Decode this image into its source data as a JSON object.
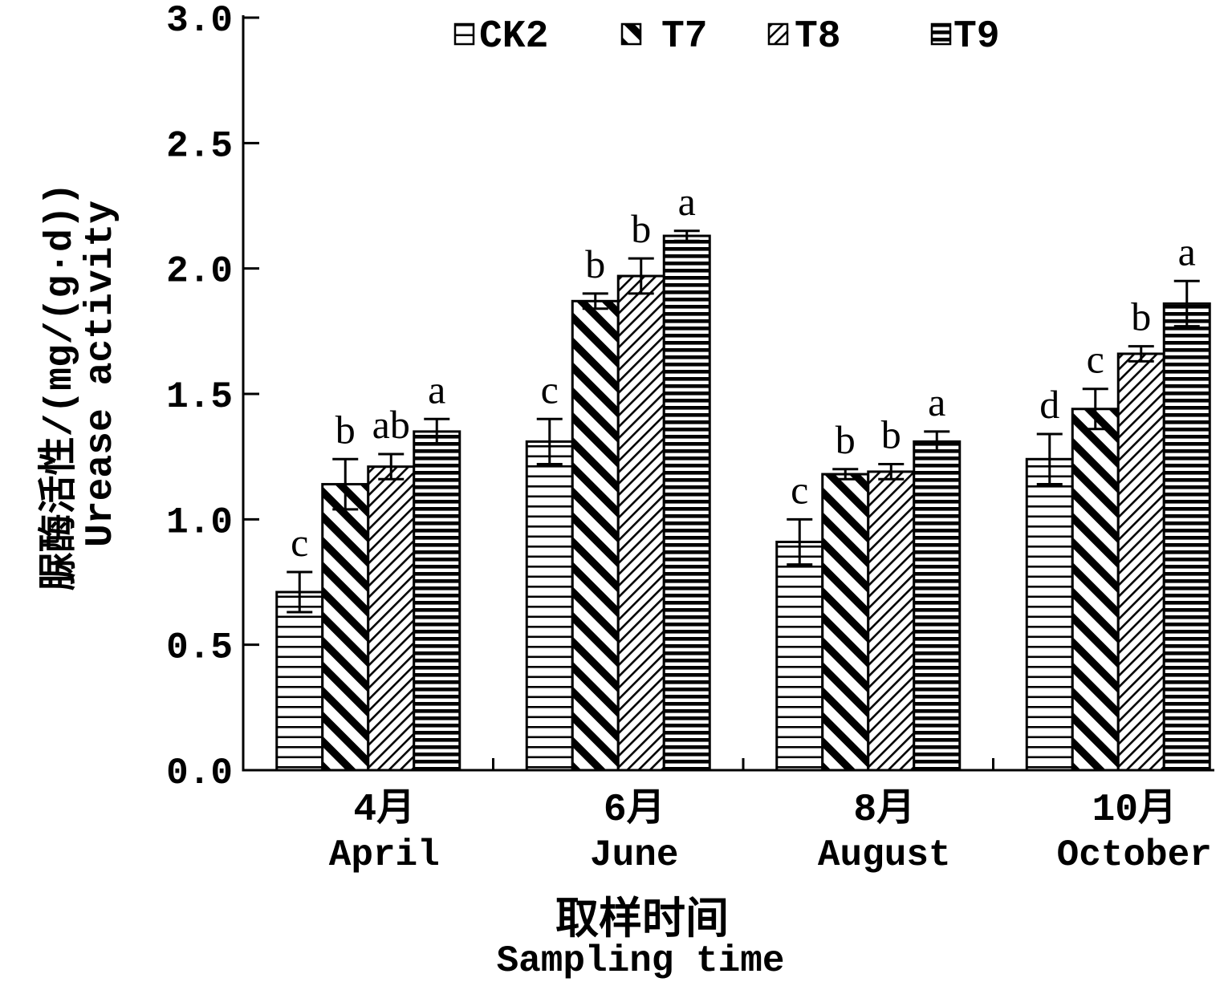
{
  "colors": {
    "ink": "#000000",
    "background": "#ffffff"
  },
  "chart_data": {
    "type": "bar",
    "categories": [
      "4月",
      "6月",
      "8月",
      "10月"
    ],
    "categories_en": [
      "April",
      "June",
      "August",
      "October"
    ],
    "series": [
      {
        "name": "CK2",
        "values": [
          0.71,
          1.31,
          0.91,
          1.24
        ],
        "errors": [
          0.08,
          0.09,
          0.09,
          0.1
        ],
        "letters": [
          "c",
          "c",
          "c",
          "d"
        ]
      },
      {
        "name": "T7",
        "values": [
          1.14,
          1.87,
          1.18,
          1.44
        ],
        "errors": [
          0.1,
          0.03,
          0.02,
          0.08
        ],
        "letters": [
          "b",
          "b",
          "b",
          "c"
        ]
      },
      {
        "name": "T8",
        "values": [
          1.21,
          1.97,
          1.19,
          1.66
        ],
        "errors": [
          0.05,
          0.07,
          0.03,
          0.03
        ],
        "letters": [
          "ab",
          "b",
          "b",
          "b"
        ]
      },
      {
        "name": "T9",
        "values": [
          1.35,
          2.13,
          1.31,
          1.86
        ],
        "errors": [
          0.05,
          0.02,
          0.04,
          0.09
        ],
        "letters": [
          "a",
          "a",
          "a",
          "a"
        ]
      }
    ],
    "ylim": [
      0,
      3.0
    ],
    "yticks": [
      "0.0",
      "0.5",
      "1.0",
      "1.5",
      "2.0",
      "2.5",
      "3.0"
    ],
    "ylabel": {
      "cn": "脲酶活性/(mg/(g·d))",
      "en": "Urease activity"
    },
    "xlabel": {
      "cn": "取样时间",
      "en": "Sampling time"
    },
    "legend_position": "top",
    "grid": false
  }
}
